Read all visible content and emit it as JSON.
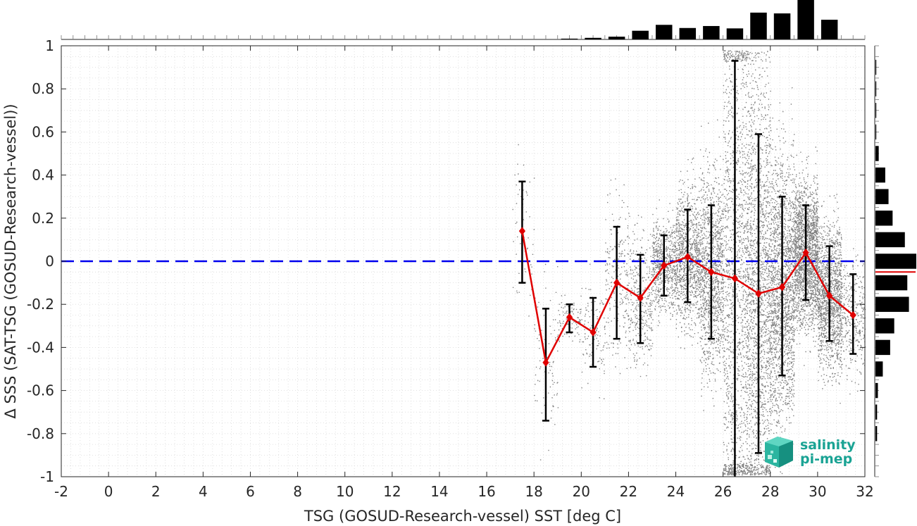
{
  "chart_data": {
    "type": "scatter",
    "xlabel": "TSG (GOSUD-Research-vessel) SST [deg C]",
    "ylabel": "Δ SSS (SAT-TSG (GOSUD-Research-vessel))",
    "xlim": [
      -2,
      32
    ],
    "ylim": [
      -1,
      1
    ],
    "x_ticks": [
      -2,
      0,
      2,
      4,
      6,
      8,
      10,
      12,
      14,
      16,
      18,
      20,
      22,
      24,
      26,
      28,
      30,
      32
    ],
    "x_tick_labels": [
      "-2",
      "0",
      "2",
      "4",
      "6",
      "8",
      "10",
      "12",
      "14",
      "16",
      "18",
      "20",
      "22",
      "24",
      "26",
      "28",
      "30",
      "32"
    ],
    "y_ticks": [
      -1,
      -0.8,
      -0.6,
      -0.4,
      -0.2,
      0,
      0.2,
      0.4,
      0.6,
      0.8,
      1
    ],
    "y_tick_labels": [
      "-1",
      "-0.8",
      "-0.6",
      "-0.4",
      "-0.2",
      "0",
      "0.2",
      "0.4",
      "0.6",
      "0.8",
      "1"
    ],
    "grid": true,
    "reference_line": {
      "y": 0,
      "color": "#0000ee",
      "style": "dashed"
    },
    "scatter_color": "#808080",
    "binned_mean": {
      "color": "#e00000",
      "x": [
        17.5,
        18.5,
        19.5,
        20.5,
        21.5,
        22.5,
        23.5,
        24.5,
        25.5,
        26.5,
        27.5,
        28.5,
        29.5,
        30.5,
        31.5
      ],
      "y": [
        0.14,
        -0.47,
        -0.26,
        -0.33,
        -0.1,
        -0.17,
        -0.02,
        0.02,
        -0.05,
        -0.08,
        -0.15,
        -0.12,
        0.04,
        -0.16,
        -0.25
      ],
      "err_low": [
        -0.1,
        -0.74,
        -0.33,
        -0.49,
        -0.36,
        -0.38,
        -0.16,
        -0.19,
        -0.36,
        -1.02,
        -0.89,
        -0.53,
        -0.18,
        -0.37,
        -0.43
      ],
      "err_high": [
        0.37,
        -0.22,
        -0.2,
        -0.17,
        0.16,
        0.03,
        0.12,
        0.24,
        0.26,
        0.93,
        0.59,
        0.3,
        0.26,
        0.07,
        -0.06
      ]
    },
    "x_histogram": {
      "bin_centers": [
        19.5,
        20.5,
        21.5,
        22.5,
        23.5,
        24.5,
        25.5,
        26.5,
        27.5,
        28.5,
        29.5,
        30.5
      ],
      "relative_counts": [
        0.02,
        0.04,
        0.07,
        0.22,
        0.37,
        0.29,
        0.34,
        0.28,
        0.68,
        0.66,
        1.0,
        0.5
      ]
    },
    "y_histogram": {
      "bin_centers": [
        0.9,
        0.8,
        0.7,
        0.6,
        0.5,
        0.4,
        0.3,
        0.2,
        0.1,
        0.0,
        -0.1,
        -0.2,
        -0.3,
        -0.4,
        -0.5,
        -0.6,
        -0.7,
        -0.8
      ],
      "relative_counts": [
        0.02,
        0.02,
        0.02,
        0.02,
        0.08,
        0.24,
        0.32,
        0.42,
        0.72,
        1.0,
        0.78,
        0.82,
        0.46,
        0.36,
        0.18,
        0.06,
        0.04,
        0.04
      ],
      "mean_marker": -0.05,
      "mean_marker_color": "#e00000"
    }
  },
  "logo": {
    "line1": "salinity",
    "line2": "pi-mep",
    "color": "#1aa394"
  }
}
